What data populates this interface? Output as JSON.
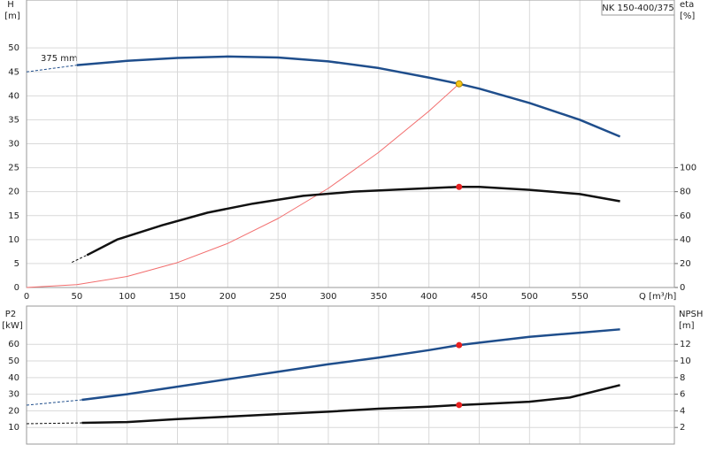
{
  "chart_data": [
    {
      "type": "line",
      "title": "NK 150-400/375",
      "y_label": "H",
      "y_unit": "[m]",
      "y2_label": "eta",
      "y2_unit": "[%]",
      "x_label": "Q [m³/h]",
      "annotation": "375 mm",
      "xlim": [
        0,
        644
      ],
      "xticks": [
        0,
        50,
        100,
        150,
        200,
        250,
        300,
        350,
        400,
        450,
        500,
        550
      ],
      "ylim": [
        0,
        60
      ],
      "yticks": [
        0,
        5,
        10,
        15,
        20,
        25,
        30,
        35,
        40,
        45,
        50
      ],
      "y2lim": [
        0,
        240
      ],
      "y2ticks": [
        0,
        20,
        40,
        60,
        80,
        100
      ],
      "grid": true,
      "series": [
        {
          "color": "#1f4e8c",
          "style": "dashed",
          "axis": "y",
          "x": [
            0,
            50
          ],
          "values": [
            45.0,
            46.4
          ]
        },
        {
          "color": "#1f4e8c",
          "style": "solid",
          "axis": "y",
          "x": [
            50,
            100,
            150,
            200,
            250,
            300,
            350,
            400,
            430,
            450,
            500,
            550,
            590
          ],
          "values": [
            46.4,
            47.3,
            47.9,
            48.2,
            48.0,
            47.2,
            45.8,
            43.8,
            42.5,
            41.5,
            38.5,
            35.0,
            31.5
          ]
        },
        {
          "color": "#f26d6d",
          "style": "thin",
          "axis": "y",
          "x": [
            0,
            50,
            100,
            150,
            200,
            250,
            300,
            350,
            400,
            430
          ],
          "values": [
            0,
            0.6,
            2.3,
            5.2,
            9.2,
            14.4,
            20.7,
            28.2,
            36.8,
            42.5
          ]
        },
        {
          "color": "#111111",
          "style": "dashed",
          "axis": "y2",
          "x": [
            45,
            60
          ],
          "values": [
            21,
            27
          ]
        },
        {
          "color": "#111111",
          "style": "solid",
          "axis": "y2",
          "x": [
            60,
            90,
            135,
            180,
            225,
            275,
            325,
            375,
            430,
            450,
            500,
            550,
            590
          ],
          "values": [
            27,
            40,
            52,
            62.5,
            70,
            76.5,
            80,
            82,
            84,
            84,
            81.5,
            78,
            72
          ]
        }
      ],
      "points": [
        {
          "x": 430,
          "value": 42.5,
          "axis": "y",
          "color": "#f5c518"
        },
        {
          "x": 430,
          "value": 84,
          "axis": "y2",
          "color": "#e62020"
        }
      ]
    },
    {
      "type": "line",
      "y_label": "P2",
      "y_unit": "[kW]",
      "y2_label": "NPSH",
      "y2_unit": "[m]",
      "xlim": [
        0,
        644
      ],
      "xticks": [
        0,
        50,
        100,
        150,
        200,
        250,
        300,
        350,
        400,
        450,
        500,
        550
      ],
      "ylim": [
        0,
        83
      ],
      "yticks": [
        10,
        20,
        30,
        40,
        50,
        60
      ],
      "y2lim": [
        0,
        16.6
      ],
      "y2ticks": [
        2,
        4,
        6,
        8,
        10,
        12
      ],
      "grid": true,
      "series": [
        {
          "color": "#1f4e8c",
          "style": "dashed",
          "axis": "y",
          "x": [
            0,
            55
          ],
          "values": [
            23.4,
            26.6
          ]
        },
        {
          "color": "#1f4e8c",
          "style": "solid",
          "axis": "y",
          "x": [
            55,
            100,
            150,
            200,
            250,
            300,
            350,
            400,
            430,
            450,
            500,
            550,
            590
          ],
          "values": [
            26.6,
            30,
            34.5,
            39,
            43.5,
            48,
            52,
            56.5,
            59.5,
            61,
            64.5,
            67,
            69
          ]
        },
        {
          "color": "#111111",
          "style": "dashed",
          "axis": "y2",
          "x": [
            0,
            55
          ],
          "values": [
            2.45,
            2.55
          ]
        },
        {
          "color": "#111111",
          "style": "solid",
          "axis": "y2",
          "x": [
            55,
            100,
            150,
            200,
            250,
            300,
            350,
            400,
            430,
            450,
            500,
            540,
            590
          ],
          "values": [
            2.55,
            2.65,
            3.0,
            3.3,
            3.6,
            3.9,
            4.25,
            4.5,
            4.7,
            4.8,
            5.1,
            5.6,
            7.1
          ]
        }
      ],
      "points": [
        {
          "x": 430,
          "value": 59.5,
          "axis": "y",
          "color": "#e62020"
        },
        {
          "x": 430,
          "value": 4.7,
          "axis": "y2",
          "color": "#e62020"
        }
      ]
    }
  ]
}
